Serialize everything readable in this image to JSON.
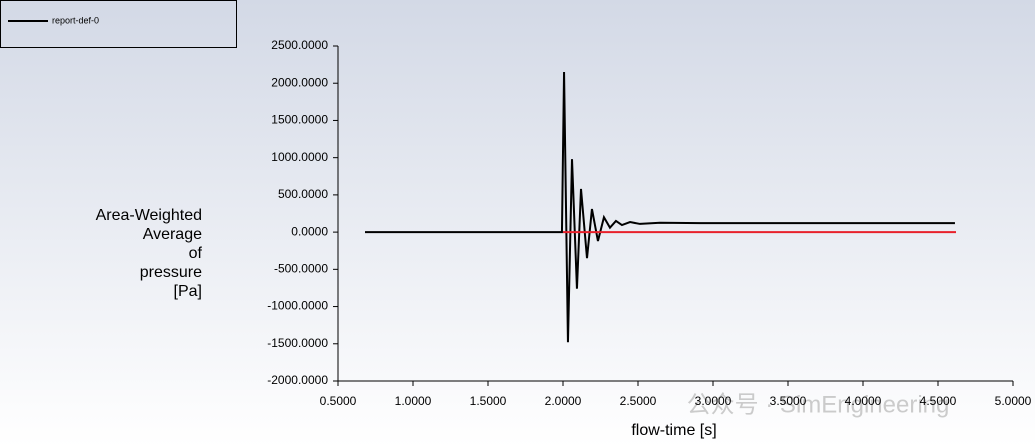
{
  "chart_data": {
    "type": "line",
    "y_label_lines": [
      "Area-Weighted",
      "Average",
      "of",
      "pressure",
      "[Pa]"
    ],
    "x_label": "flow-time [s]",
    "watermark": "公众号 · SimEngineering",
    "series": [
      {
        "name": "report-def-0",
        "color": "#000000",
        "x": [
          0.68,
          1.993,
          2.007,
          2.033,
          2.06,
          2.093,
          2.12,
          2.16,
          2.193,
          2.233,
          2.273,
          2.313,
          2.353,
          2.393,
          2.447,
          2.513,
          2.647,
          2.913,
          4.613
        ],
        "values": [
          0,
          0,
          2150,
          -1480,
          980,
          -760,
          580,
          -350,
          310,
          -120,
          200,
          60,
          150,
          95,
          135,
          110,
          125,
          120,
          120
        ]
      },
      {
        "color": "#e8202a",
        "x": [
          2.0,
          4.62
        ],
        "values": [
          0,
          0
        ]
      }
    ],
    "xlim": [
      0.5,
      5.0
    ],
    "ylim": [
      -2000,
      2500
    ],
    "xticks": [
      {
        "value": 0.5,
        "label": "0.5000"
      },
      {
        "value": 1.0,
        "label": "1.0000"
      },
      {
        "value": 1.5,
        "label": "1.5000"
      },
      {
        "value": 2.0,
        "label": "2.0000"
      },
      {
        "value": 2.5,
        "label": "2.5000"
      },
      {
        "value": 3.0,
        "label": "3.0000"
      },
      {
        "value": 3.5,
        "label": "3.5000"
      },
      {
        "value": 4.0,
        "label": "4.0000"
      },
      {
        "value": 4.5,
        "label": "4.5000"
      },
      {
        "value": 5.0,
        "label": "5.0000"
      }
    ],
    "yticks": [
      {
        "value": 2500,
        "label": "2500.0000"
      },
      {
        "value": 2000,
        "label": "2000.0000"
      },
      {
        "value": 1500,
        "label": "1500.0000"
      },
      {
        "value": 1000,
        "label": "1000.0000"
      },
      {
        "value": 500,
        "label": "500.0000"
      },
      {
        "value": 0,
        "label": "0.0000"
      },
      {
        "value": -500,
        "label": "-500.0000"
      },
      {
        "value": -1000,
        "label": "-1000.0000"
      },
      {
        "value": -1500,
        "label": "-1500.0000"
      },
      {
        "value": -2000,
        "label": "-2000.0000"
      }
    ],
    "grid": false
  }
}
